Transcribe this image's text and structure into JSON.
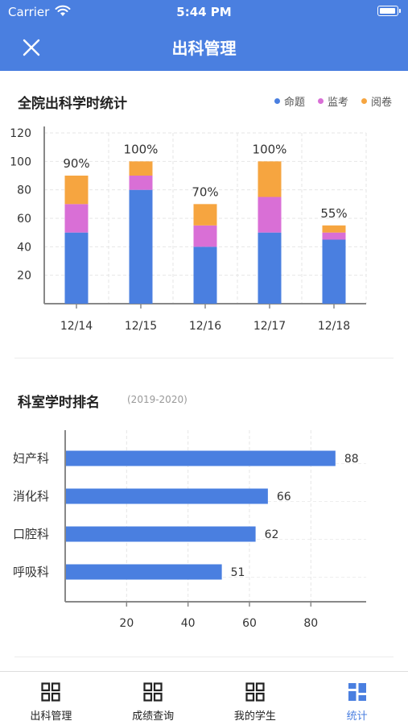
{
  "status_bar": {
    "carrier": "Carrier",
    "time": "5:44 PM"
  },
  "nav": {
    "title": "出科管理",
    "close_icon": "close-icon"
  },
  "attendance_chart": {
    "title": "全院出科学时统计",
    "legend": [
      {
        "label": "命题",
        "color": "#4a7fe0"
      },
      {
        "label": "监考",
        "color": "#d96fd6"
      },
      {
        "label": "阅卷",
        "color": "#f6a540"
      }
    ]
  },
  "ranking_chart": {
    "title": "科室学时排名",
    "period": "(2019-2020)"
  },
  "chart_data": [
    {
      "type": "bar",
      "stacked": true,
      "title": "全院出科学时统计",
      "categories": [
        "12/14",
        "12/15",
        "12/16",
        "12/17",
        "12/18"
      ],
      "series": [
        {
          "name": "命题",
          "color": "#4a7fe0",
          "values": [
            50,
            80,
            40,
            50,
            45
          ]
        },
        {
          "name": "监考",
          "color": "#d96fd6",
          "values": [
            20,
            10,
            15,
            25,
            5
          ]
        },
        {
          "name": "阅卷",
          "color": "#f6a540",
          "values": [
            20,
            10,
            15,
            25,
            5
          ]
        }
      ],
      "data_labels": [
        "90%",
        "100%",
        "70%",
        "100%",
        "55%"
      ],
      "yticks": [
        20,
        40,
        60,
        80,
        100,
        120
      ],
      "ylim": [
        0,
        120
      ],
      "grid": true
    },
    {
      "type": "bar",
      "orientation": "horizontal",
      "title": "科室学时排名",
      "subtitle": "(2019-2020)",
      "categories": [
        "妇产科",
        "消化科",
        "口腔科",
        "呼吸科"
      ],
      "values": [
        88,
        66,
        62,
        51
      ],
      "color": "#4a7fe0",
      "xticks": [
        20,
        40,
        60,
        80
      ],
      "xlim": [
        0,
        98
      ],
      "grid": true
    }
  ],
  "tabs": [
    {
      "label": "出科管理",
      "icon": "grid-icon",
      "active": false
    },
    {
      "label": "成绩查询",
      "icon": "grid-icon",
      "active": false
    },
    {
      "label": "我的学生",
      "icon": "grid-icon",
      "active": false
    },
    {
      "label": "统计",
      "icon": "dashboard-icon",
      "active": true
    }
  ]
}
